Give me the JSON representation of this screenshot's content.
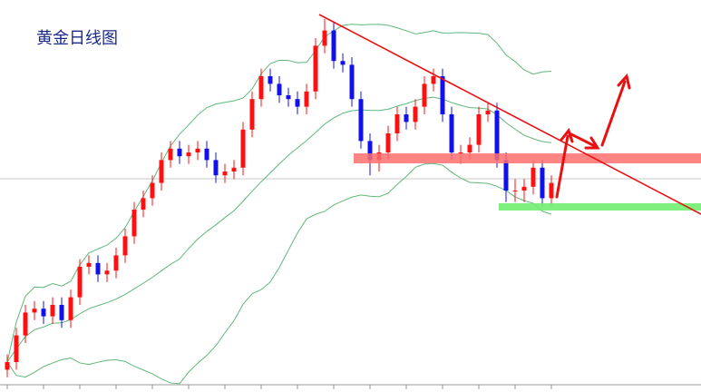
{
  "chart_data": {
    "type": "candlestick",
    "title": "黄金日线图",
    "up_color": "#ff1010",
    "down_color": "#1010ee",
    "band_color": "#5fb87a",
    "ylim": [
      0,
      100
    ],
    "open": [
      3,
      5,
      12,
      18,
      19,
      17,
      20,
      16,
      22,
      30,
      31,
      28,
      29,
      33,
      38,
      45,
      48,
      52,
      58,
      61,
      59,
      60,
      61,
      58,
      54,
      55,
      56,
      66,
      74,
      80,
      78,
      75,
      74,
      72,
      76,
      88,
      92,
      84,
      83,
      74,
      63,
      58,
      60,
      65,
      70,
      68,
      72,
      78,
      80,
      70,
      60,
      60,
      62,
      70,
      71,
      58,
      50,
      50,
      51,
      56,
      48
    ],
    "high": [
      7,
      14,
      20,
      21,
      21,
      22,
      22,
      24,
      32,
      33,
      33,
      31,
      35,
      40,
      47,
      50,
      54,
      60,
      63,
      63,
      62,
      63,
      63,
      60,
      57,
      58,
      68,
      76,
      82,
      82,
      80,
      77,
      76,
      78,
      90,
      95,
      94,
      86,
      85,
      76,
      65,
      62,
      67,
      72,
      72,
      74,
      80,
      82,
      82,
      72,
      62,
      64,
      72,
      73,
      73,
      60,
      53,
      53,
      58,
      58,
      54
    ],
    "low": [
      1,
      3,
      10,
      16,
      15,
      15,
      14,
      14,
      20,
      28,
      26,
      26,
      27,
      31,
      36,
      43,
      46,
      50,
      56,
      57,
      57,
      58,
      56,
      52,
      52,
      53,
      54,
      64,
      72,
      76,
      73,
      72,
      70,
      70,
      74,
      86,
      82,
      81,
      72,
      61,
      54,
      55,
      58,
      63,
      66,
      66,
      70,
      76,
      68,
      58,
      57,
      58,
      60,
      68,
      56,
      47,
      47,
      47,
      49,
      46,
      46
    ],
    "close": [
      5,
      12,
      18,
      19,
      17,
      20,
      16,
      22,
      30,
      31,
      28,
      29,
      33,
      38,
      45,
      48,
      52,
      58,
      61,
      59,
      60,
      61,
      58,
      54,
      55,
      56,
      66,
      74,
      80,
      78,
      75,
      74,
      72,
      76,
      88,
      92,
      84,
      83,
      74,
      63,
      58,
      60,
      65,
      70,
      68,
      72,
      78,
      80,
      70,
      60,
      60,
      62,
      70,
      71,
      58,
      50,
      50,
      51,
      56,
      48,
      52
    ]
  }
}
